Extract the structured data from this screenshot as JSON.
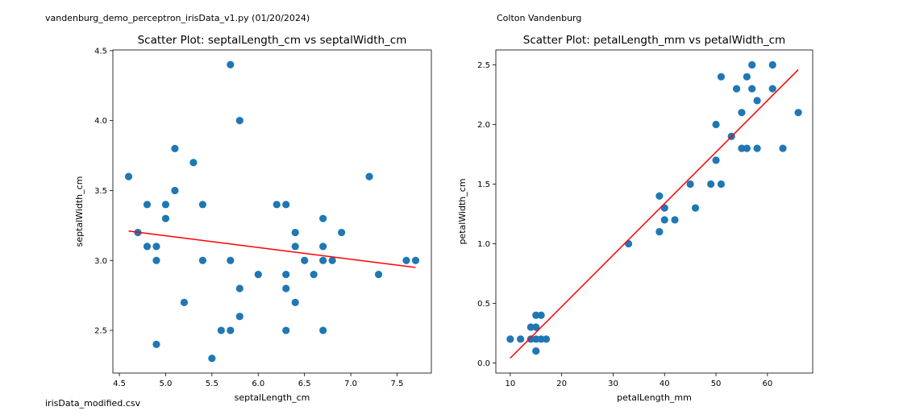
{
  "header": {
    "left_note": "vandenburg_demo_perceptron_irisData_v1.py (01/20/2024)",
    "right_note": "Colton Vandenburg"
  },
  "footer": {
    "source_note": "irisData_modified.csv"
  },
  "colors": {
    "points": "#1f77b4",
    "fit_line": "#ff0000"
  },
  "chart_data": [
    {
      "type": "scatter",
      "title": "Scatter Plot: septalLength_cm vs septalWidth_cm",
      "xlabel": "septalLength_cm",
      "ylabel": "septalWidth_cm",
      "xlim": [
        4.43,
        7.87
      ],
      "ylim": [
        2.195,
        4.505
      ],
      "xticks": [
        4.5,
        5.0,
        5.5,
        6.0,
        6.5,
        7.0,
        7.5
      ],
      "xtick_labels": [
        "4.5",
        "5.0",
        "5.5",
        "6.0",
        "6.5",
        "7.0",
        "7.5"
      ],
      "yticks": [
        2.5,
        3.0,
        3.5,
        4.0,
        4.5
      ],
      "ytick_labels": [
        "2.5",
        "3.0",
        "3.5",
        "4.0",
        "4.5"
      ],
      "grid": false,
      "points": [
        [
          4.6,
          3.6
        ],
        [
          4.7,
          3.2
        ],
        [
          4.8,
          3.4
        ],
        [
          4.8,
          3.1
        ],
        [
          4.9,
          3.1
        ],
        [
          4.9,
          3.0
        ],
        [
          4.9,
          2.4
        ],
        [
          5.0,
          3.4
        ],
        [
          5.0,
          3.3
        ],
        [
          5.1,
          3.8
        ],
        [
          5.1,
          3.5
        ],
        [
          5.2,
          2.7
        ],
        [
          5.3,
          3.7
        ],
        [
          5.4,
          3.4
        ],
        [
          5.4,
          3.0
        ],
        [
          5.5,
          2.3
        ],
        [
          5.6,
          2.5
        ],
        [
          5.7,
          4.4
        ],
        [
          5.7,
          3.0
        ],
        [
          5.7,
          2.5
        ],
        [
          5.8,
          4.0
        ],
        [
          5.8,
          2.8
        ],
        [
          5.8,
          2.6
        ],
        [
          6.0,
          2.9
        ],
        [
          6.2,
          3.4
        ],
        [
          6.3,
          3.4
        ],
        [
          6.3,
          2.9
        ],
        [
          6.3,
          2.8
        ],
        [
          6.3,
          2.5
        ],
        [
          6.4,
          3.2
        ],
        [
          6.4,
          3.1
        ],
        [
          6.4,
          2.7
        ],
        [
          6.5,
          3.0
        ],
        [
          6.6,
          2.9
        ],
        [
          6.7,
          3.3
        ],
        [
          6.7,
          3.1
        ],
        [
          6.7,
          3.0
        ],
        [
          6.7,
          2.5
        ],
        [
          6.8,
          3.0
        ],
        [
          6.9,
          3.2
        ],
        [
          7.2,
          3.6
        ],
        [
          7.3,
          2.9
        ],
        [
          7.6,
          3.0
        ],
        [
          7.7,
          3.0
        ]
      ],
      "fit_line": [
        [
          4.6,
          3.21
        ],
        [
          7.7,
          2.95
        ]
      ]
    },
    {
      "type": "scatter",
      "title": "Scatter Plot: petalLength_mm vs petalWidth_cm",
      "xlabel": "petalLength_mm",
      "ylabel": "petalWidth_cm",
      "xlim": [
        7.2,
        68.8
      ],
      "ylim": [
        -0.085,
        2.625
      ],
      "xticks": [
        10,
        20,
        30,
        40,
        50,
        60
      ],
      "xtick_labels": [
        "10",
        "20",
        "30",
        "40",
        "50",
        "60"
      ],
      "yticks": [
        0.0,
        0.5,
        1.0,
        1.5,
        2.0,
        2.5
      ],
      "ytick_labels": [
        "0.0",
        "0.5",
        "1.0",
        "1.5",
        "2.0",
        "2.5"
      ],
      "grid": false,
      "points": [
        [
          10,
          0.2
        ],
        [
          12,
          0.2
        ],
        [
          14,
          0.3
        ],
        [
          14,
          0.2
        ],
        [
          15,
          0.4
        ],
        [
          15,
          0.3
        ],
        [
          15,
          0.2
        ],
        [
          15,
          0.1
        ],
        [
          16,
          0.4
        ],
        [
          16,
          0.2
        ],
        [
          17,
          0.2
        ],
        [
          33,
          1.0
        ],
        [
          39,
          1.4
        ],
        [
          39,
          1.1
        ],
        [
          40,
          1.3
        ],
        [
          40,
          1.2
        ],
        [
          42,
          1.2
        ],
        [
          45,
          1.5
        ],
        [
          46,
          1.3
        ],
        [
          49,
          1.5
        ],
        [
          50,
          2.0
        ],
        [
          50,
          1.7
        ],
        [
          51,
          2.4
        ],
        [
          51,
          1.5
        ],
        [
          53,
          1.9
        ],
        [
          54,
          2.3
        ],
        [
          55,
          2.1
        ],
        [
          55,
          1.8
        ],
        [
          56,
          2.4
        ],
        [
          56,
          1.8
        ],
        [
          57,
          2.5
        ],
        [
          57,
          2.3
        ],
        [
          58,
          2.2
        ],
        [
          58,
          1.8
        ],
        [
          61,
          2.5
        ],
        [
          61,
          2.3
        ],
        [
          63,
          1.8
        ],
        [
          66,
          2.1
        ]
      ],
      "fit_line": [
        [
          10,
          0.04
        ],
        [
          66,
          2.46
        ]
      ]
    }
  ]
}
